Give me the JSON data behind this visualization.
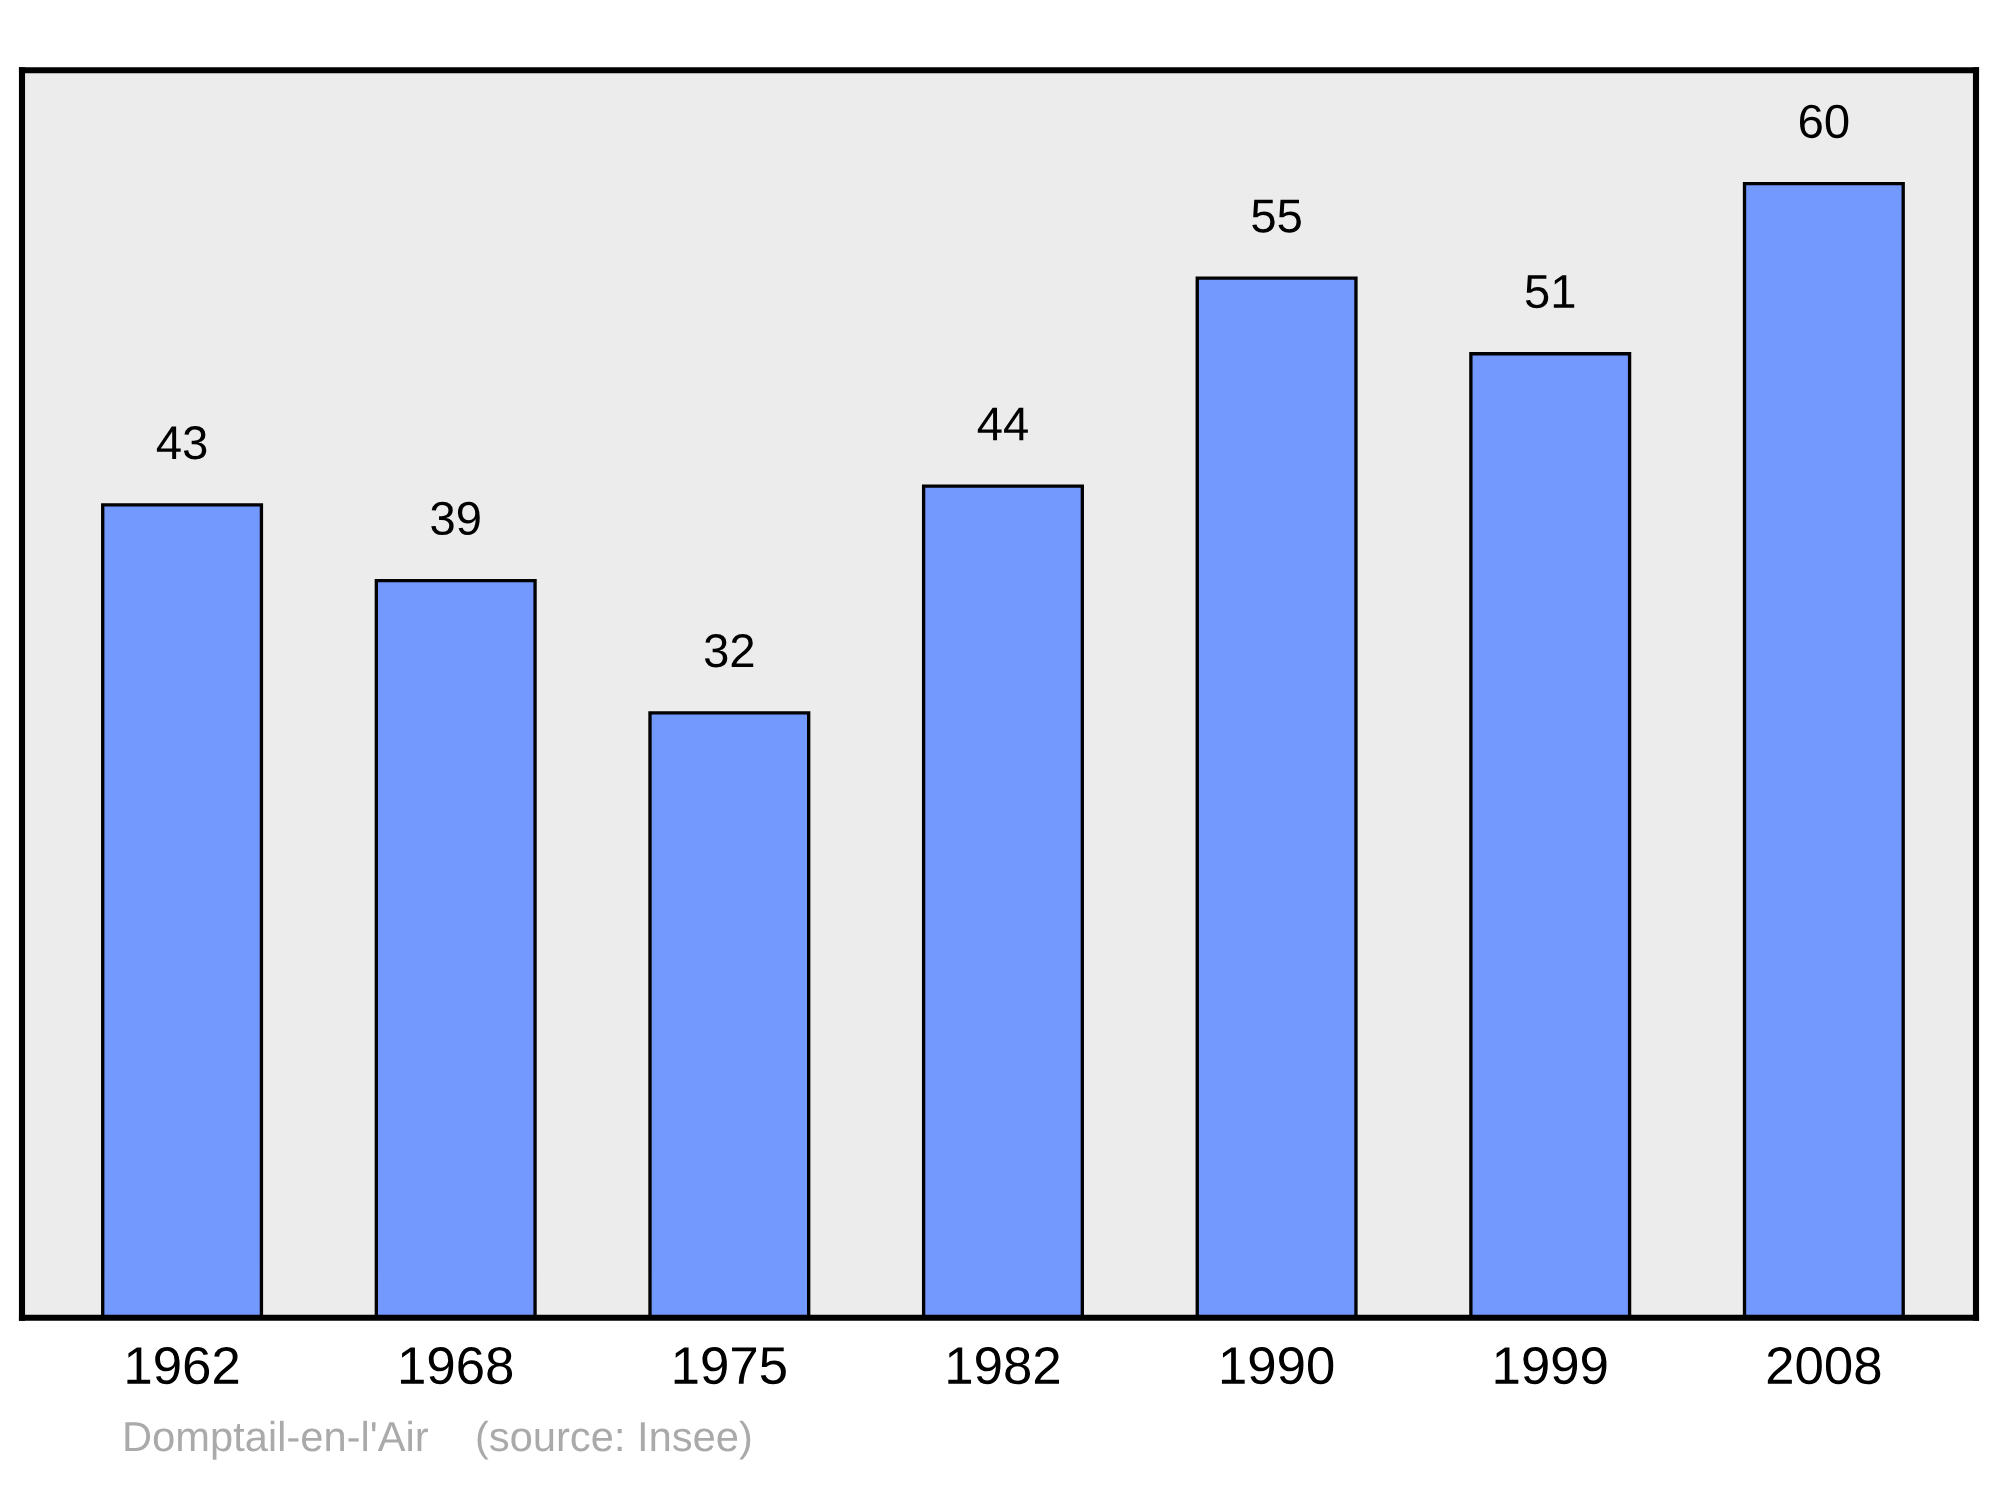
{
  "chart_data": {
    "type": "bar",
    "categories": [
      "1962",
      "1968",
      "1975",
      "1982",
      "1990",
      "1999",
      "2008"
    ],
    "values": [
      43,
      39,
      32,
      44,
      55,
      51,
      60
    ],
    "color": "#7399ff",
    "ylim": [
      0,
      66
    ],
    "data_labels": true,
    "grid": false,
    "legend": false,
    "tick_labels": "x",
    "annotations": [
      "Domptail-en-l'Air    (source: Insee)"
    ]
  }
}
